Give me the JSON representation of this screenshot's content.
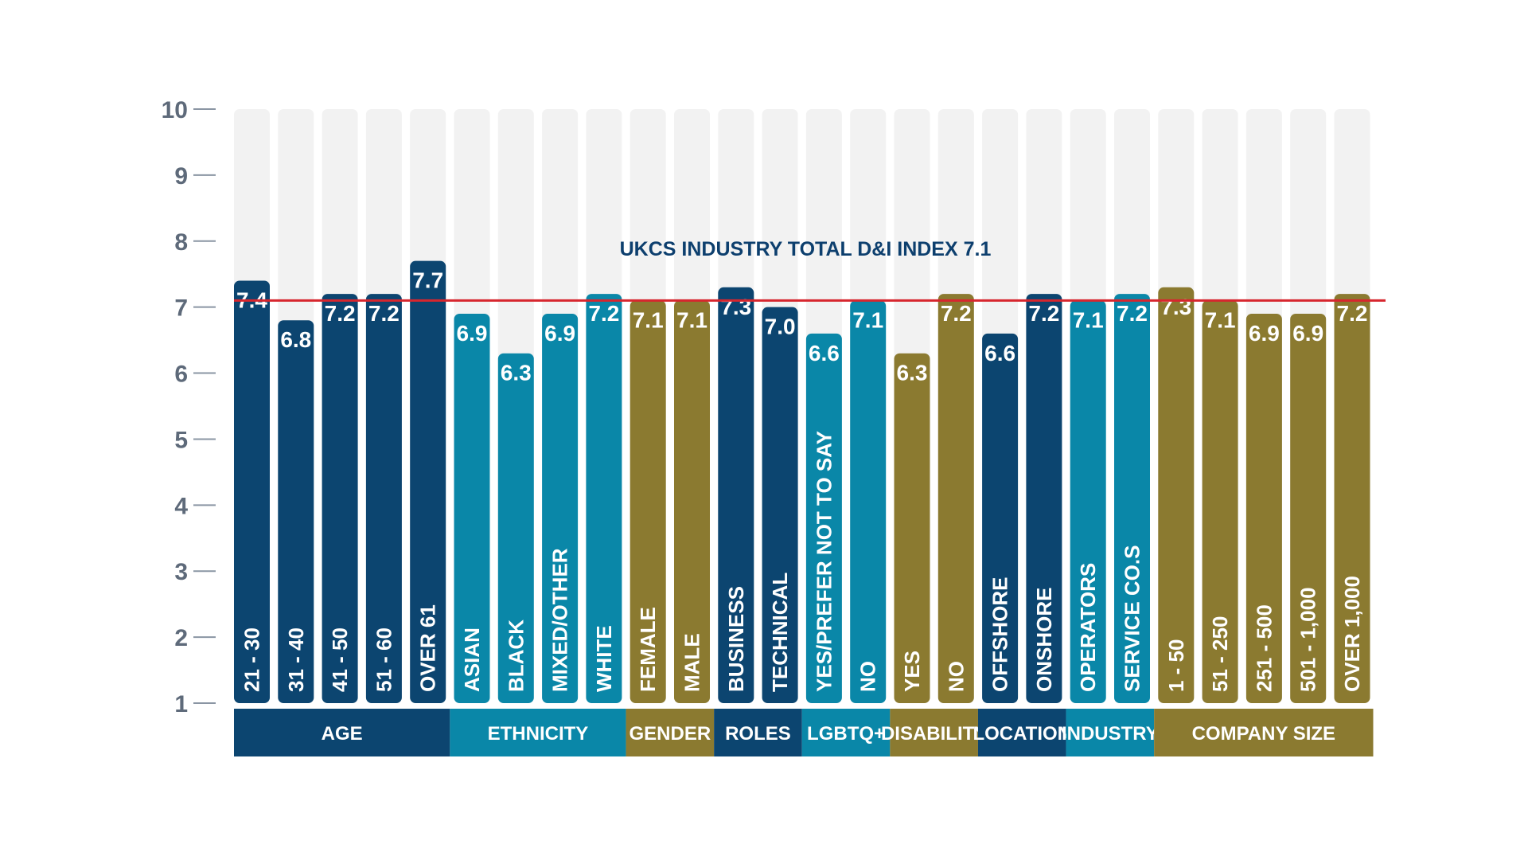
{
  "chart_data": {
    "type": "bar",
    "title": "",
    "xlabel": "",
    "ylabel": "",
    "ylim": [
      1,
      10
    ],
    "yticks": [
      "1",
      "2",
      "3",
      "4",
      "5",
      "6",
      "7",
      "8",
      "9",
      "10"
    ],
    "grid": false,
    "reference_line": {
      "value": 7.1,
      "label": "UKCS INDUSTRY TOTAL D&I INDEX 7.1",
      "color": "#d7262e"
    },
    "background_bar_color": "#f2f2f2",
    "colors": {
      "navy": "#0c4570",
      "teal": "#0a87a8",
      "olive": "#8b7a30"
    },
    "categories": [
      "21 - 30",
      "31 - 40",
      "41 - 50",
      "51 - 60",
      "OVER 61",
      "ASIAN",
      "BLACK",
      "MIXED/OTHER",
      "WHITE",
      "FEMALE",
      "MALE",
      "BUSINESS",
      "TECHNICAL",
      "YES/PREFER NOT TO SAY",
      "NO",
      "YES",
      "NO",
      "OFFSHORE",
      "ONSHORE",
      "OPERATORS",
      "SERVICE CO.S",
      "1 - 50",
      "51 - 250",
      "251 - 500",
      "501 - 1,000",
      "OVER 1,000"
    ],
    "values": [
      7.4,
      6.8,
      7.2,
      7.2,
      7.7,
      6.9,
      6.3,
      6.9,
      7.2,
      7.1,
      7.1,
      7.3,
      7.0,
      6.6,
      7.1,
      6.3,
      7.2,
      6.6,
      7.2,
      7.1,
      7.2,
      7.3,
      7.1,
      6.9,
      6.9,
      7.2
    ],
    "value_labels": [
      "7.4",
      "6.8",
      "7.2",
      "7.2",
      "7.7",
      "6.9",
      "6.3",
      "6.9",
      "7.2",
      "7.1",
      "7.1",
      "7.3",
      "7.0",
      "6.6",
      "7.1",
      "6.3",
      "7.2",
      "6.6",
      "7.2",
      "7.1",
      "7.2",
      "7.3",
      "7.1",
      "6.9",
      "6.9",
      "7.2"
    ],
    "groups": [
      {
        "name": "AGE",
        "start": 0,
        "end": 4,
        "color": "navy"
      },
      {
        "name": "ETHNICITY",
        "start": 5,
        "end": 8,
        "color": "teal"
      },
      {
        "name": "GENDER",
        "start": 9,
        "end": 10,
        "color": "olive"
      },
      {
        "name": "ROLES",
        "start": 11,
        "end": 12,
        "color": "navy"
      },
      {
        "name": "LGBTQ+",
        "start": 13,
        "end": 14,
        "color": "teal"
      },
      {
        "name": "DISABILITY",
        "start": 15,
        "end": 16,
        "color": "olive"
      },
      {
        "name": "LOCATION",
        "start": 17,
        "end": 18,
        "color": "navy"
      },
      {
        "name": "INDUSTRY",
        "start": 19,
        "end": 20,
        "color": "teal"
      },
      {
        "name": "COMPANY SIZE",
        "start": 21,
        "end": 25,
        "color": "olive"
      }
    ]
  }
}
